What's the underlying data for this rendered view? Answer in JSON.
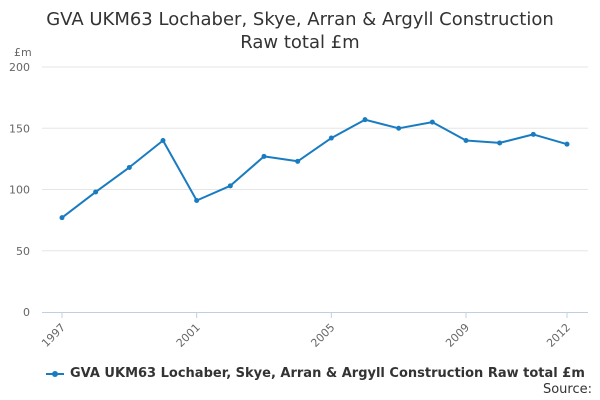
{
  "chart_title_lines": [
    "GVA UKM63 Lochaber, Skye, Arran & Argyll Construction",
    "Raw total £m"
  ],
  "source_label": "Source:",
  "colors": {
    "series": "#1a7cc0",
    "grid": "#e6e6e6",
    "axis": "#c0d0e0",
    "text": "#666666"
  },
  "chart_data": {
    "type": "line",
    "title": "GVA UKM63 Lochaber, Skye, Arran & Argyll Construction Raw total £m",
    "ylabel": "£m",
    "xlabel": "",
    "ylim": [
      0,
      200
    ],
    "xlim": [
      1997,
      2012
    ],
    "y_ticks": [
      0,
      50,
      100,
      150,
      200
    ],
    "x_tick_labels": [
      "1997",
      "2001",
      "2005",
      "2009",
      "2012"
    ],
    "grid": true,
    "legend_position": "bottom-left",
    "x": [
      1997,
      1998,
      1999,
      2000,
      2001,
      2002,
      2003,
      2004,
      2005,
      2006,
      2007,
      2008,
      2009,
      2010,
      2011,
      2012
    ],
    "series": [
      {
        "name": "GVA UKM63 Lochaber, Skye, Arran & Argyll Construction Raw total £m",
        "values": [
          77,
          98,
          118,
          140,
          91,
          103,
          127,
          123,
          142,
          157,
          150,
          155,
          140,
          138,
          145,
          137
        ]
      }
    ]
  }
}
